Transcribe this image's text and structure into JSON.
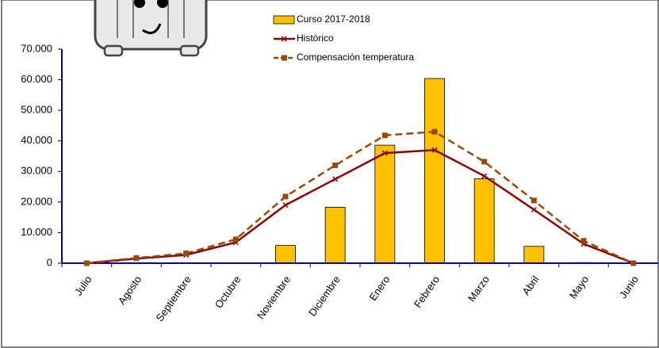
{
  "chart_data": {
    "type": "bar-line",
    "categories": [
      "Julio",
      "Agosto",
      "Septiembre",
      "Octubre",
      "Noviembre",
      "Diciembre",
      "Enero",
      "Febrero",
      "Marzo",
      "Abril",
      "Mayo",
      "Junio"
    ],
    "series": [
      {
        "name": "Curso 2017-2018",
        "color": "#ffc000",
        "kind": "bar",
        "values": [
          0,
          0,
          0,
          0,
          5800,
          18300,
          38600,
          60400,
          27600,
          5500,
          200,
          0
        ]
      },
      {
        "name": "Histórico",
        "color": "#8b0000",
        "kind": "line",
        "values": [
          0,
          1500,
          2700,
          6800,
          19000,
          27500,
          36000,
          37000,
          28500,
          17500,
          6300,
          0
        ]
      },
      {
        "name": "Compensación temperatura",
        "color": "#984807",
        "kind": "dashed-line",
        "values": [
          0,
          1700,
          3200,
          7800,
          21800,
          32000,
          41800,
          43000,
          33200,
          20500,
          7300,
          0
        ]
      }
    ],
    "ylim": [
      0,
      70000
    ],
    "yticks": [
      0,
      {
        "value": 10000,
        "label": "10.000"
      },
      {
        "value": 20000,
        "label": "20.000"
      },
      {
        "value": 30000,
        "label": "30.000"
      },
      {
        "value": 40000,
        "label": "40.000"
      },
      {
        "value": 50000,
        "label": "50.000"
      },
      {
        "value": 60000,
        "label": "60.000"
      },
      {
        "value": 70000,
        "label": "70.000"
      }
    ],
    "legend": "top-center"
  }
}
